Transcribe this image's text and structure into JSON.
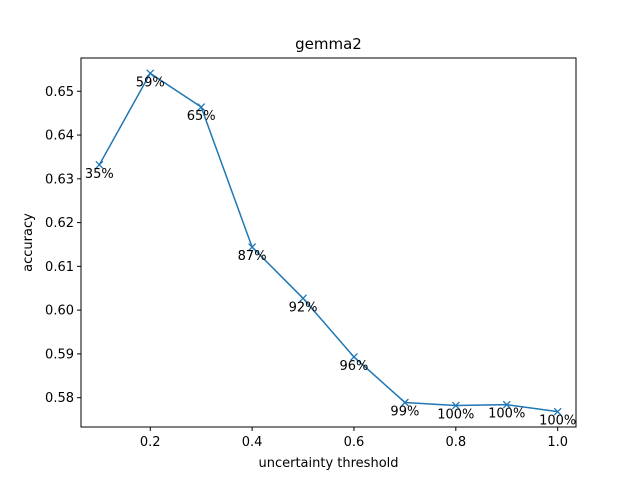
{
  "chart_data": {
    "type": "line",
    "title": "gemma2",
    "xlabel": "uncertainty threshold",
    "ylabel": "accuracy",
    "xlim": [
      0.064,
      1.036
    ],
    "ylim": [
      0.5733,
      0.6576
    ],
    "xticks": [
      0.2,
      0.4,
      0.6,
      0.8,
      1.0
    ],
    "xtick_labels": [
      "0.2",
      "0.4",
      "0.6",
      "0.8",
      "1.0"
    ],
    "yticks": [
      0.58,
      0.59,
      0.6,
      0.61,
      0.62,
      0.63,
      0.64,
      0.65
    ],
    "ytick_labels": [
      "0.58",
      "0.59",
      "0.60",
      "0.61",
      "0.62",
      "0.63",
      "0.64",
      "0.65"
    ],
    "grid": false,
    "series": [
      {
        "color": "#1f77b4",
        "marker": "x",
        "x": [
          0.1,
          0.2,
          0.3,
          0.4,
          0.5,
          0.6,
          0.7,
          0.8,
          0.9,
          1.0
        ],
        "y": [
          0.6332,
          0.6541,
          0.6464,
          0.6144,
          0.6027,
          0.5893,
          0.5789,
          0.5782,
          0.5784,
          0.5768
        ],
        "labels": [
          "35%",
          "59%",
          "65%",
          "87%",
          "92%",
          "96%",
          "99%",
          "100%",
          "100%",
          "100%"
        ]
      }
    ]
  }
}
